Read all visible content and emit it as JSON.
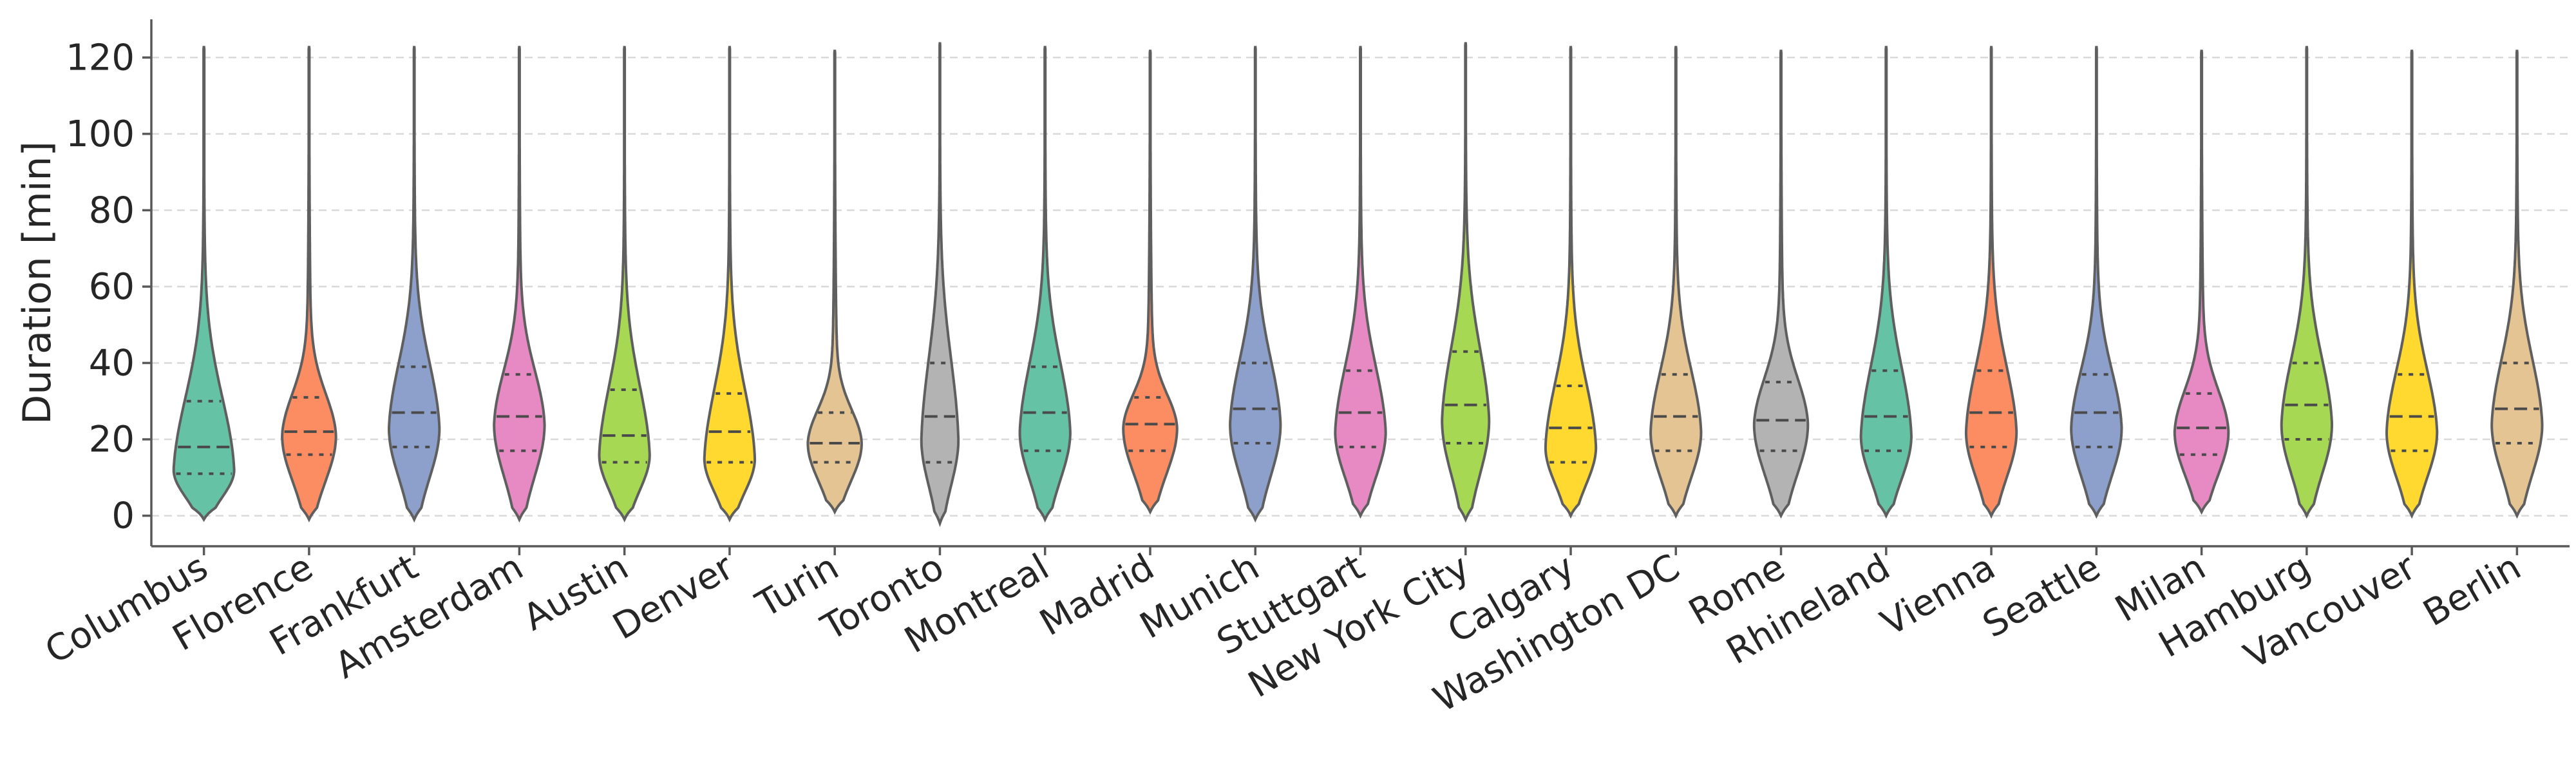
{
  "chart_data": {
    "type": "violin",
    "ylabel": "Duration [min]",
    "ylim": [
      -8,
      130
    ],
    "yticks": [
      0,
      20,
      40,
      60,
      80,
      100,
      120
    ],
    "grid": "y-dashed",
    "categories": [
      "Columbus",
      "Florence",
      "Frankfurt",
      "Amsterdam",
      "Austin",
      "Denver",
      "Turin",
      "Toronto",
      "Montreal",
      "Madrid",
      "Munich",
      "Stuttgart",
      "New York City",
      "Calgary",
      "Washington DC",
      "Rome",
      "Rhineland",
      "Vienna",
      "Seattle",
      "Milan",
      "Hamburg",
      "Vancouver",
      "Berlin"
    ],
    "colors": [
      "#66c2a5",
      "#fc8d62",
      "#8da0cb",
      "#e78ac3",
      "#a6d854",
      "#ffd92f",
      "#e5c494",
      "#b3b3b3",
      "#66c2a5",
      "#fc8d62",
      "#8da0cb",
      "#e78ac3",
      "#a6d854",
      "#ffd92f",
      "#e5c494",
      "#b3b3b3",
      "#66c2a5",
      "#fc8d62",
      "#8da0cb",
      "#e78ac3",
      "#a6d854",
      "#ffd92f",
      "#e5c494"
    ],
    "violins": [
      {
        "min": -1,
        "max": 123,
        "q1": 11,
        "median": 18,
        "q3": 30,
        "mode": 12,
        "width": 0.9
      },
      {
        "min": -1,
        "max": 123,
        "q1": 16,
        "median": 22,
        "q3": 31,
        "mode": 21,
        "width": 0.8
      },
      {
        "min": -1,
        "max": 123,
        "q1": 18,
        "median": 27,
        "q3": 39,
        "mode": 23,
        "width": 0.75
      },
      {
        "min": -1,
        "max": 123,
        "q1": 17,
        "median": 26,
        "q3": 37,
        "mode": 24,
        "width": 0.75
      },
      {
        "min": -1,
        "max": 123,
        "q1": 14,
        "median": 21,
        "q3": 33,
        "mode": 16,
        "width": 0.75
      },
      {
        "min": -1,
        "max": 123,
        "q1": 14,
        "median": 22,
        "q3": 32,
        "mode": 15,
        "width": 0.75
      },
      {
        "min": 1,
        "max": 122,
        "q1": 14,
        "median": 19,
        "q3": 27,
        "mode": 19,
        "width": 0.8
      },
      {
        "min": -2,
        "max": 124,
        "q1": 14,
        "median": 26,
        "q3": 40,
        "mode": 20,
        "width": 0.55
      },
      {
        "min": -1,
        "max": 123,
        "q1": 17,
        "median": 27,
        "q3": 39,
        "mode": 22,
        "width": 0.75
      },
      {
        "min": 1,
        "max": 122,
        "q1": 17,
        "median": 24,
        "q3": 31,
        "mode": 23,
        "width": 0.8
      },
      {
        "min": -1,
        "max": 123,
        "q1": 19,
        "median": 28,
        "q3": 40,
        "mode": 24,
        "width": 0.75
      },
      {
        "min": 0,
        "max": 123,
        "q1": 18,
        "median": 27,
        "q3": 38,
        "mode": 22,
        "width": 0.75
      },
      {
        "min": -1,
        "max": 124,
        "q1": 19,
        "median": 29,
        "q3": 43,
        "mode": 25,
        "width": 0.7
      },
      {
        "min": 0,
        "max": 123,
        "q1": 14,
        "median": 23,
        "q3": 34,
        "mode": 18,
        "width": 0.75
      },
      {
        "min": 0,
        "max": 123,
        "q1": 17,
        "median": 26,
        "q3": 37,
        "mode": 22,
        "width": 0.75
      },
      {
        "min": 0,
        "max": 122,
        "q1": 17,
        "median": 25,
        "q3": 35,
        "mode": 24,
        "width": 0.8
      },
      {
        "min": 0,
        "max": 123,
        "q1": 17,
        "median": 26,
        "q3": 38,
        "mode": 21,
        "width": 0.75
      },
      {
        "min": 0,
        "max": 123,
        "q1": 18,
        "median": 27,
        "q3": 38,
        "mode": 22,
        "width": 0.75
      },
      {
        "min": 0,
        "max": 123,
        "q1": 18,
        "median": 27,
        "q3": 37,
        "mode": 23,
        "width": 0.75
      },
      {
        "min": 1,
        "max": 122,
        "q1": 16,
        "median": 23,
        "q3": 32,
        "mode": 22,
        "width": 0.8
      },
      {
        "min": 0,
        "max": 123,
        "q1": 20,
        "median": 29,
        "q3": 40,
        "mode": 24,
        "width": 0.75
      },
      {
        "min": 0,
        "max": 122,
        "q1": 17,
        "median": 26,
        "q3": 37,
        "mode": 22,
        "width": 0.75
      },
      {
        "min": 0,
        "max": 122,
        "q1": 19,
        "median": 28,
        "q3": 40,
        "mode": 24,
        "width": 0.75
      }
    ]
  }
}
